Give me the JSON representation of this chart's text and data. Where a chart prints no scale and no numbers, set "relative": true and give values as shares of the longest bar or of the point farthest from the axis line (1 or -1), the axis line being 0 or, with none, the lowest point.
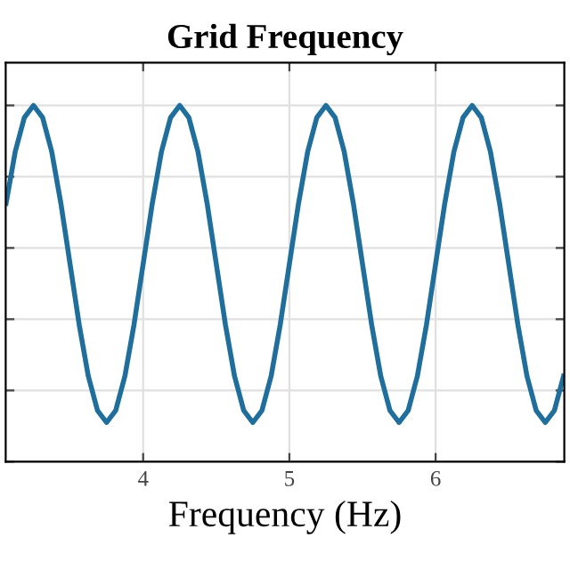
{
  "chart_data": {
    "type": "line",
    "title": "Grid Frequency",
    "xlabel": "Frequency (Hz)",
    "relative": true,
    "tick_labels": "x",
    "grid": true,
    "legend": false,
    "xlim": [
      3.06,
      6.88
    ],
    "xticks": [
      4,
      5,
      6
    ],
    "x": [
      3.0625,
      3.125,
      3.1875,
      3.25,
      3.3125,
      3.375,
      3.4375,
      3.5,
      3.5625,
      3.625,
      3.6875,
      3.75,
      3.8125,
      3.875,
      3.9375,
      4.0,
      4.0625,
      4.125,
      4.1875,
      4.25,
      4.3125,
      4.375,
      4.4375,
      4.5,
      4.5625,
      4.625,
      4.6875,
      4.75,
      4.8125,
      4.875,
      4.9375,
      5.0,
      5.0625,
      5.125,
      5.1875,
      5.25,
      5.3125,
      5.375,
      5.4375,
      5.5,
      5.5625,
      5.625,
      5.6875,
      5.75,
      5.8125,
      5.875,
      5.9375,
      6.0,
      6.0625,
      6.125,
      6.1875,
      6.25,
      6.3125,
      6.375,
      6.4375,
      6.5,
      6.5625,
      6.625,
      6.6875,
      6.75,
      6.8125,
      6.875
    ],
    "series": [
      {
        "color": "#1f6e9c",
        "values": [
          0.725,
          0.87,
          0.966,
          1,
          0.966,
          0.87,
          0.725,
          0.555,
          0.385,
          0.24,
          0.144,
          0.11,
          0.144,
          0.24,
          0.385,
          0.555,
          0.725,
          0.87,
          0.966,
          1,
          0.966,
          0.87,
          0.725,
          0.555,
          0.385,
          0.24,
          0.144,
          0.11,
          0.144,
          0.24,
          0.385,
          0.555,
          0.725,
          0.87,
          0.966,
          1,
          0.966,
          0.87,
          0.725,
          0.555,
          0.385,
          0.24,
          0.144,
          0.11,
          0.144,
          0.24,
          0.385,
          0.555,
          0.725,
          0.87,
          0.966,
          1,
          0.966,
          0.87,
          0.725,
          0.555,
          0.385,
          0.24,
          0.144,
          0.11,
          0.144,
          0.24
        ]
      }
    ]
  }
}
